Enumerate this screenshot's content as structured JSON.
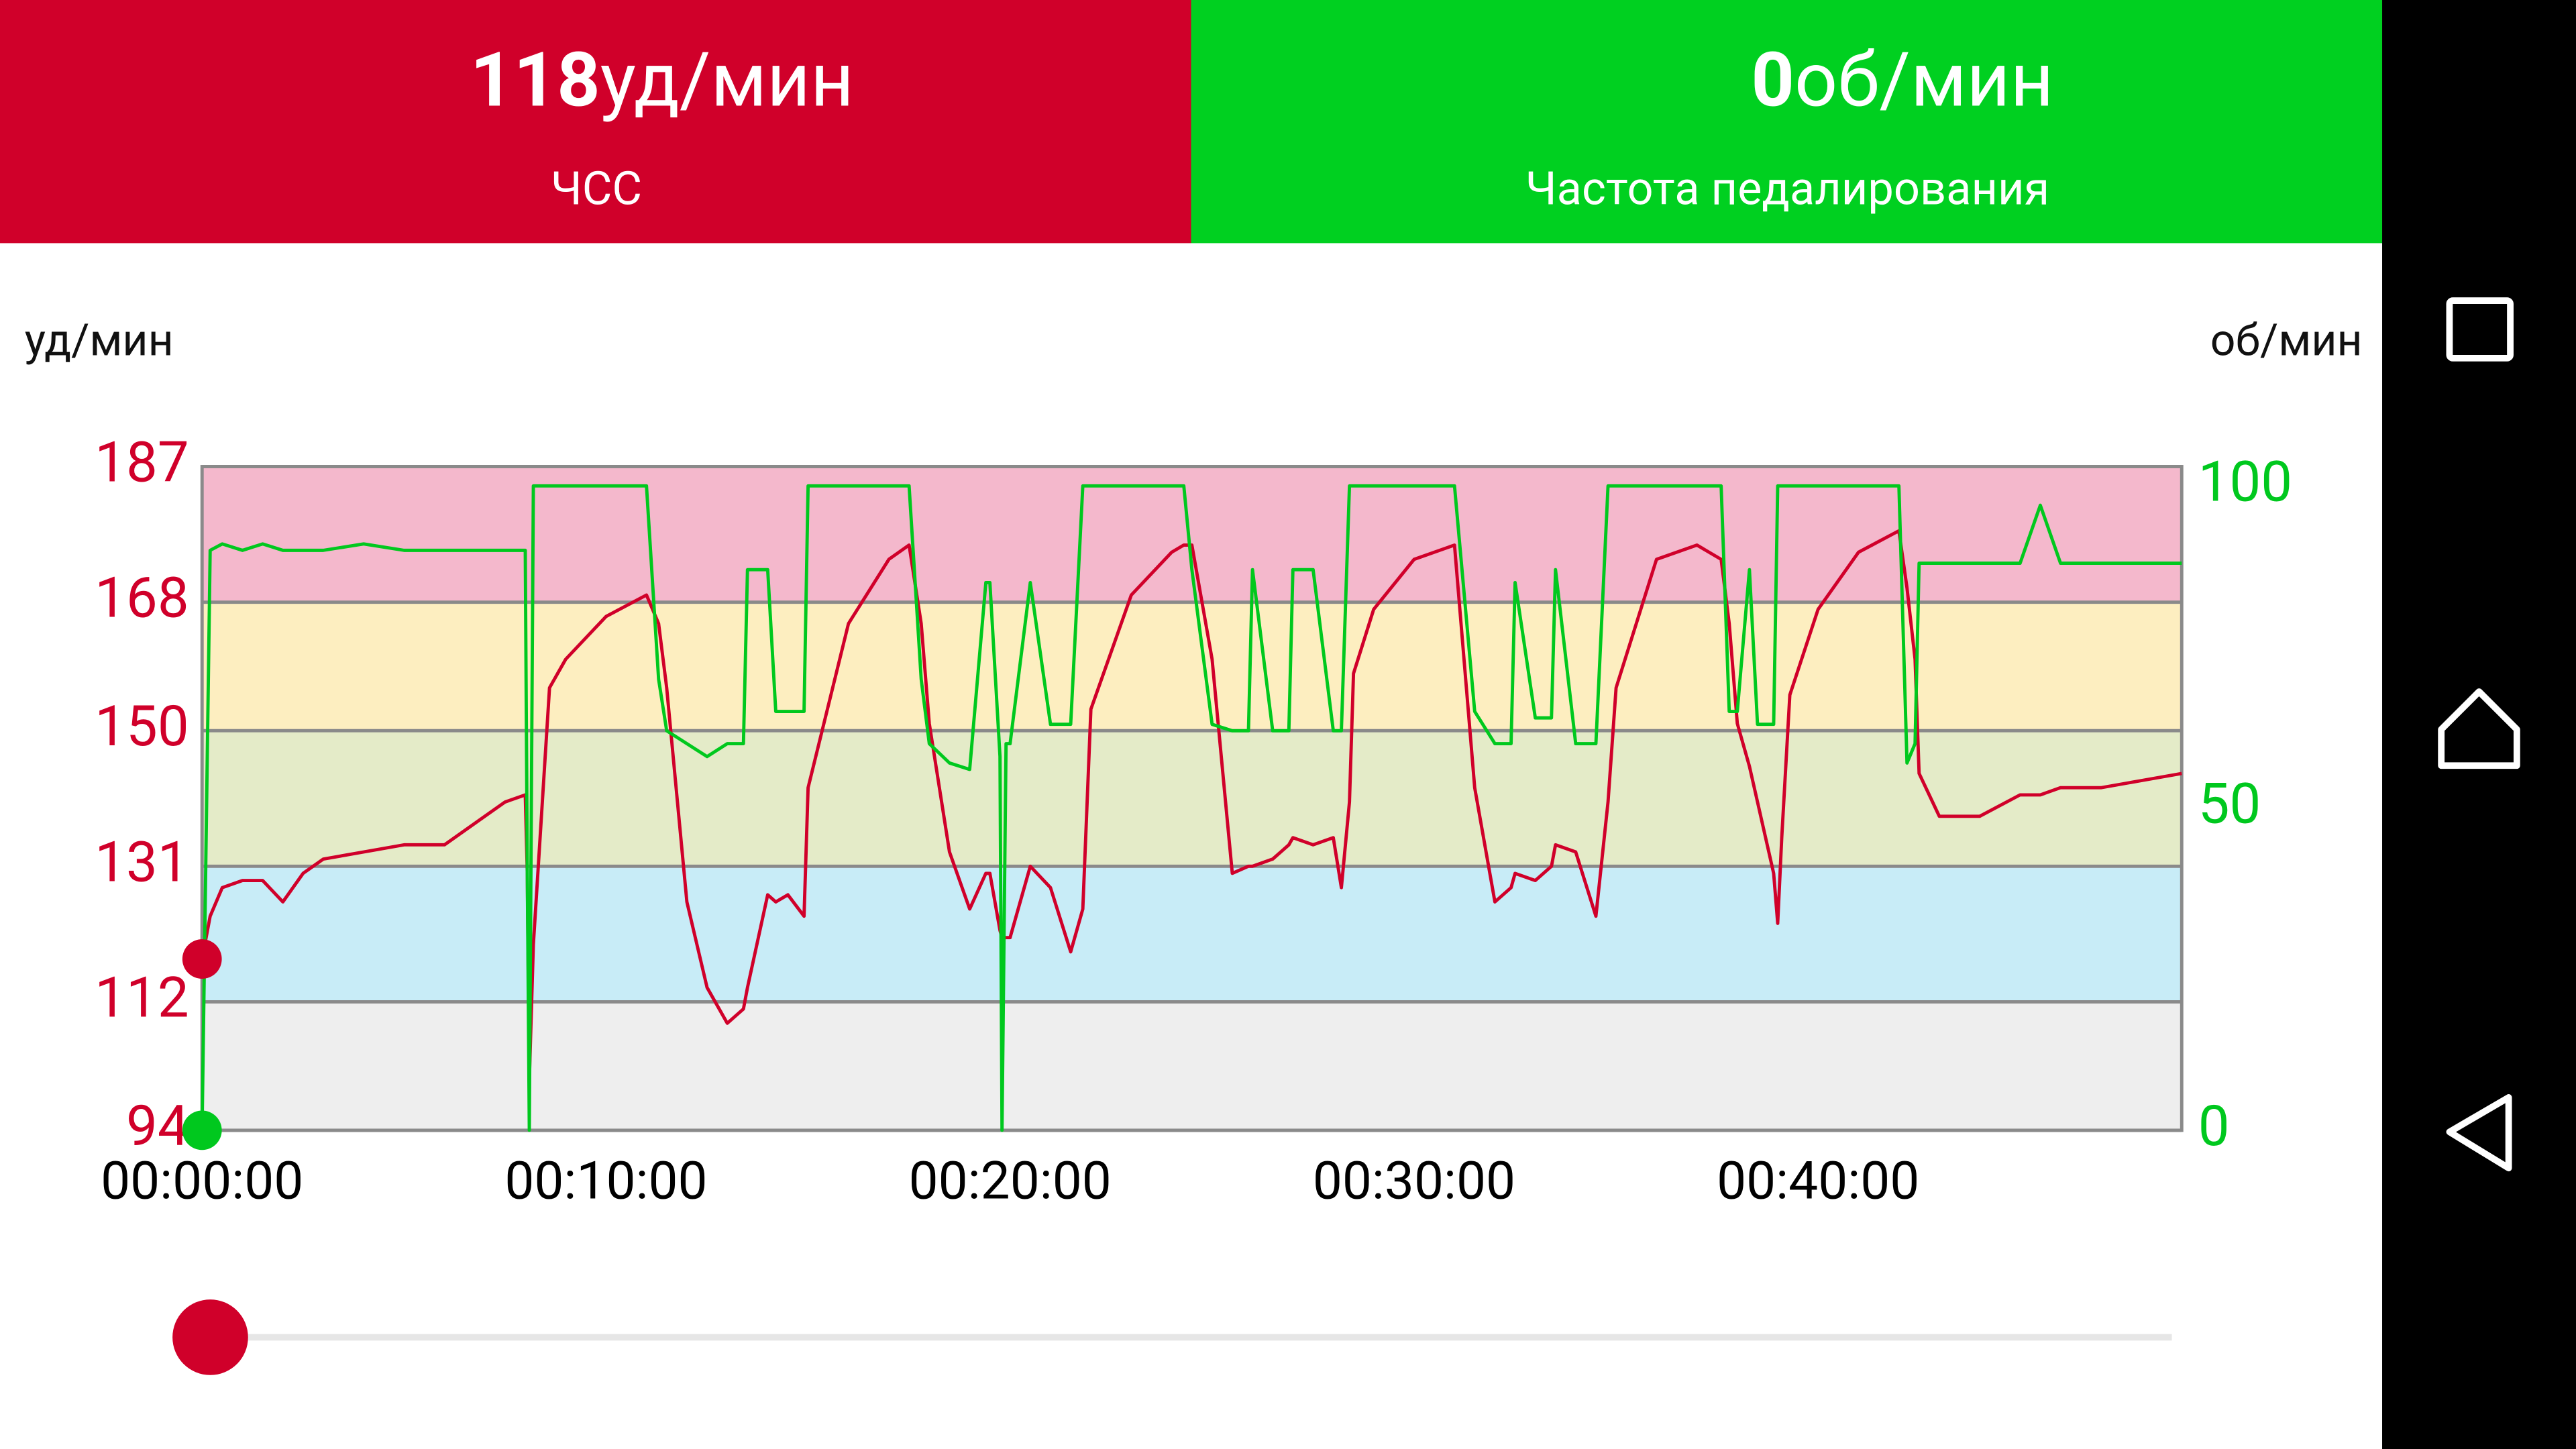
{
  "header": {
    "hr": {
      "value": 118,
      "unit": "уд/мин",
      "label": "ЧСС"
    },
    "cadence": {
      "value": 0,
      "unit": "об/мин",
      "label": "Частота педалирования"
    }
  },
  "chart_data": {
    "type": "line",
    "ylabel": "уд/мин",
    "y2label": "об/мин",
    "x": [
      0,
      12,
      30,
      60,
      90,
      120,
      150,
      180,
      240,
      300,
      360,
      420,
      450,
      480,
      483,
      486,
      492,
      516,
      540,
      600,
      660,
      678,
      690,
      720,
      750,
      780,
      804,
      810,
      840,
      852,
      870,
      894,
      900,
      960,
      1020,
      1050,
      1068,
      1080,
      1110,
      1140,
      1164,
      1170,
      1185,
      1188,
      1194,
      1200,
      1230,
      1260,
      1290,
      1308,
      1320,
      1380,
      1440,
      1458,
      1470,
      1500,
      1530,
      1554,
      1560,
      1590,
      1614,
      1620,
      1650,
      1680,
      1692,
      1704,
      1710,
      1740,
      1800,
      1860,
      1890,
      1920,
      1944,
      1950,
      1980,
      2004,
      2010,
      2040,
      2070,
      2088,
      2100,
      2160,
      2220,
      2256,
      2268,
      2280,
      2298,
      2310,
      2334,
      2340,
      2346,
      2358,
      2400,
      2460,
      2520,
      2532,
      2544,
      2550,
      2580,
      2640,
      2700,
      2730,
      2760,
      2820,
      2880,
      2940
    ],
    "series": [
      {
        "color": "#d0002a",
        "values": [
          118,
          124,
          128,
          129,
          129,
          126,
          130,
          132,
          133,
          134,
          134,
          138,
          140,
          141,
          130,
          101,
          120,
          156,
          160,
          166,
          169,
          165,
          156,
          126,
          114,
          109,
          111,
          114,
          127,
          126,
          127,
          124,
          142,
          165,
          174,
          176,
          165,
          151,
          133,
          125,
          130,
          130,
          122,
          121,
          121,
          121,
          131,
          128,
          119,
          125,
          153,
          169,
          175,
          176,
          176,
          160,
          130,
          131,
          131,
          132,
          134,
          135,
          134,
          135,
          128,
          140,
          158,
          167,
          174,
          176,
          142,
          126,
          128,
          130,
          129,
          131,
          134,
          133,
          124,
          140,
          156,
          174,
          176,
          174,
          165,
          151,
          145,
          140,
          130,
          123,
          135,
          155,
          167,
          175,
          178,
          170,
          160,
          144,
          138,
          138,
          141,
          141,
          142,
          142,
          143,
          144
        ]
      },
      {
        "color": "#00c81e",
        "axis": "y2",
        "values": [
          0,
          90,
          91,
          90,
          91,
          90,
          90,
          90,
          91,
          90,
          90,
          90,
          90,
          90,
          40,
          0,
          100,
          100,
          100,
          100,
          100,
          70,
          62,
          60,
          58,
          60,
          60,
          87,
          87,
          65,
          65,
          65,
          100,
          100,
          100,
          100,
          70,
          60,
          57,
          56,
          85,
          85,
          58,
          0,
          60,
          60,
          85,
          63,
          63,
          100,
          100,
          100,
          100,
          100,
          87,
          63,
          62,
          62,
          87,
          62,
          62,
          87,
          87,
          62,
          62,
          100,
          100,
          100,
          100,
          100,
          65,
          60,
          60,
          85,
          64,
          64,
          87,
          60,
          60,
          100,
          100,
          100,
          100,
          100,
          65,
          65,
          87,
          63,
          63,
          100,
          100,
          100,
          100,
          100,
          100,
          57,
          60,
          88,
          88,
          88,
          88,
          97,
          88,
          88,
          88,
          88
        ]
      }
    ],
    "xlim": [
      0,
      2940
    ],
    "xticks": [
      {
        "value": 0,
        "label": "00:00:00"
      },
      {
        "value": 600,
        "label": "00:10:00"
      },
      {
        "value": 1200,
        "label": "00:20:00"
      },
      {
        "value": 1800,
        "label": "00:30:00"
      },
      {
        "value": 2400,
        "label": "00:40:00"
      }
    ],
    "ylim": [
      94,
      187
    ],
    "yticks": [
      94,
      112,
      131,
      150,
      168,
      187
    ],
    "y2lim": [
      0,
      103
    ],
    "y2ticks": [
      0,
      50,
      100
    ],
    "zone_colors": [
      "#eeeeee",
      "#c8ecf7",
      "#e4ebc8",
      "#fdeec0",
      "#f4b8cc"
    ],
    "grid": true
  }
}
